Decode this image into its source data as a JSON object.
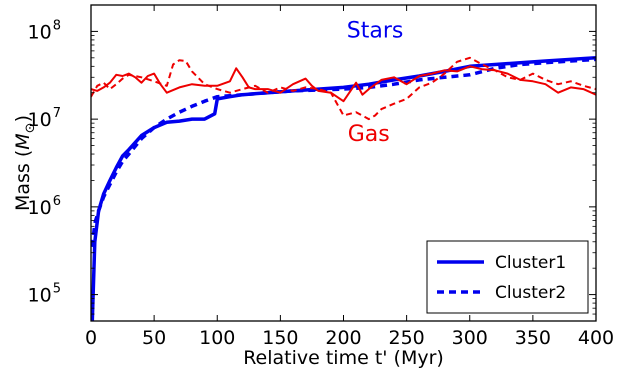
{
  "chart_data": {
    "type": "line",
    "title": "",
    "xlabel": "Relative time t' (Myr)",
    "ylabel_text": "Mass (",
    "ylabel_symbol": "M",
    "ylabel_sub": "⊙",
    "ylabel_close": ")",
    "xlim": [
      0,
      400
    ],
    "ylim": [
      50000,
      200000000
    ],
    "yscale": "log",
    "grid": false,
    "legend_position": "lower-right",
    "x_ticks": [
      {
        "value": 0,
        "label": "0"
      },
      {
        "value": 50,
        "label": "50"
      },
      {
        "value": 100,
        "label": "100"
      },
      {
        "value": 150,
        "label": "150"
      },
      {
        "value": 200,
        "label": "200"
      },
      {
        "value": 250,
        "label": "250"
      },
      {
        "value": 300,
        "label": "300"
      },
      {
        "value": 350,
        "label": "350"
      },
      {
        "value": 400,
        "label": "400"
      }
    ],
    "y_ticks": [
      {
        "value": 100000,
        "base": "10",
        "exp": "5"
      },
      {
        "value": 1000000,
        "base": "10",
        "exp": "6"
      },
      {
        "value": 10000000,
        "base": "10",
        "exp": "7"
      },
      {
        "value": 100000000,
        "base": "10",
        "exp": "8"
      }
    ],
    "legend": [
      {
        "label": "Cluster1",
        "style": "solid"
      },
      {
        "label": "Cluster2",
        "style": "dashed"
      }
    ],
    "annotations": [
      {
        "text": "Stars",
        "x": 225,
        "y": 85000000,
        "color": "#0000ee"
      },
      {
        "text": "Gas",
        "x": 220,
        "y": 5600000,
        "color": "#ee0000"
      }
    ],
    "colors": {
      "stars": "#0000ee",
      "gas": "#ee0000"
    },
    "series": [
      {
        "quantity": "stars",
        "cluster": "Cluster1",
        "style": "solid",
        "x": [
          1,
          3,
          6,
          10,
          15,
          20,
          25,
          30,
          40,
          50,
          60,
          70,
          80,
          90,
          98,
          100,
          110,
          120,
          140,
          160,
          180,
          200,
          220,
          240,
          260,
          280,
          300,
          320,
          340,
          360,
          380,
          400
        ],
        "y": [
          50000,
          400000,
          900000,
          1400000,
          2000000,
          2800000,
          3800000,
          4500000,
          6500000,
          8000000,
          9200000,
          9500000,
          10000000,
          10000000,
          11500000,
          17000000,
          18000000,
          19000000,
          20000000,
          21000000,
          22000000,
          23000000,
          25000000,
          28000000,
          31000000,
          35000000,
          40000000,
          42000000,
          44000000,
          46000000,
          48000000,
          50000000
        ]
      },
      {
        "quantity": "stars",
        "cluster": "Cluster2",
        "style": "dashed",
        "x": [
          1,
          3,
          6,
          10,
          15,
          20,
          25,
          30,
          40,
          50,
          60,
          70,
          80,
          90,
          100,
          120,
          140,
          160,
          180,
          200,
          220,
          240,
          260,
          280,
          300,
          320,
          340,
          360,
          380,
          400
        ],
        "y": [
          350000,
          650000,
          900000,
          1300000,
          1800000,
          2500000,
          3300000,
          4000000,
          6000000,
          8000000,
          10000000,
          12000000,
          14000000,
          16000000,
          18000000,
          19000000,
          20000000,
          21000000,
          21500000,
          22000000,
          23000000,
          25000000,
          28000000,
          30000000,
          32000000,
          38000000,
          42000000,
          44000000,
          46000000,
          48000000
        ]
      },
      {
        "quantity": "gas",
        "cluster": "Cluster1",
        "style": "solid",
        "x": [
          0,
          5,
          10,
          15,
          20,
          25,
          30,
          35,
          40,
          45,
          50,
          55,
          60,
          70,
          80,
          90,
          100,
          110,
          115,
          120,
          125,
          130,
          140,
          150,
          160,
          170,
          175,
          180,
          190,
          200,
          210,
          215,
          220,
          230,
          240,
          250,
          260,
          270,
          280,
          290,
          300,
          310,
          320,
          330,
          340,
          350,
          360,
          370,
          380,
          390,
          400
        ],
        "y": [
          22000000,
          21000000,
          23000000,
          26000000,
          32000000,
          31000000,
          33000000,
          30000000,
          26000000,
          31000000,
          33000000,
          25000000,
          20000000,
          23000000,
          25000000,
          24000000,
          24000000,
          27000000,
          38000000,
          30000000,
          23000000,
          22000000,
          22000000,
          20000000,
          25000000,
          29000000,
          24000000,
          21000000,
          20000000,
          16000000,
          26000000,
          19000000,
          22000000,
          28000000,
          30000000,
          25000000,
          31000000,
          33000000,
          36000000,
          35000000,
          40000000,
          37000000,
          36000000,
          33000000,
          28000000,
          27000000,
          25000000,
          20000000,
          23000000,
          22000000,
          19000000
        ]
      },
      {
        "quantity": "gas",
        "cluster": "Cluster2",
        "style": "dashed",
        "x": [
          0,
          5,
          10,
          15,
          20,
          25,
          30,
          40,
          50,
          60,
          65,
          70,
          75,
          80,
          90,
          100,
          110,
          120,
          130,
          140,
          150,
          160,
          170,
          180,
          190,
          200,
          210,
          220,
          225,
          230,
          240,
          250,
          260,
          270,
          280,
          290,
          300,
          310,
          320,
          330,
          340,
          350,
          360,
          370,
          380,
          390,
          400
        ],
        "y": [
          18000000,
          24000000,
          26000000,
          22000000,
          25000000,
          29000000,
          32000000,
          30000000,
          27000000,
          24000000,
          42000000,
          47000000,
          46000000,
          35000000,
          25000000,
          22000000,
          20000000,
          22000000,
          24000000,
          20000000,
          23000000,
          21000000,
          23000000,
          22000000,
          20000000,
          11000000,
          12000000,
          10000000,
          11000000,
          13000000,
          15000000,
          17000000,
          23000000,
          26000000,
          33000000,
          45000000,
          50000000,
          42000000,
          36000000,
          30000000,
          28000000,
          33000000,
          28000000,
          25000000,
          27000000,
          24000000,
          22000000
        ]
      }
    ]
  }
}
